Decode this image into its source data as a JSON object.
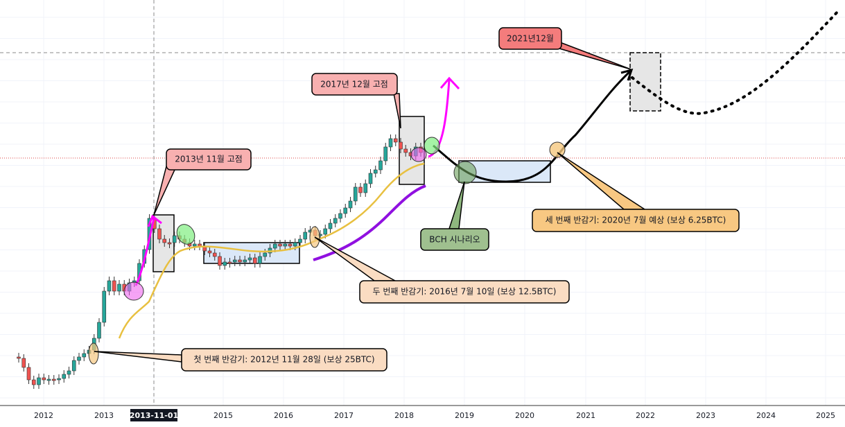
{
  "chart_data": {
    "type": "candlestick",
    "x_axis": {
      "labels": [
        "2012",
        "2013",
        "2013-11-01",
        "2015",
        "2016",
        "2017",
        "2018",
        "2019",
        "2020",
        "2021",
        "2022",
        "2023",
        "2024",
        "2025"
      ]
    },
    "annotations": [
      "2021년12월",
      "2017년 12월 고점",
      "2013년 11월 고점",
      "BCH 시나리오",
      "세 번째 반감기: 2020년 7월 예상 (보상 6.25BTC)",
      "두 번째 반감기: 2016년 7월 10일 (보상 12.5BTC)",
      "첫 번째 반감기: 2012년 11월 28일 (보상 25BTC)"
    ]
  }
}
